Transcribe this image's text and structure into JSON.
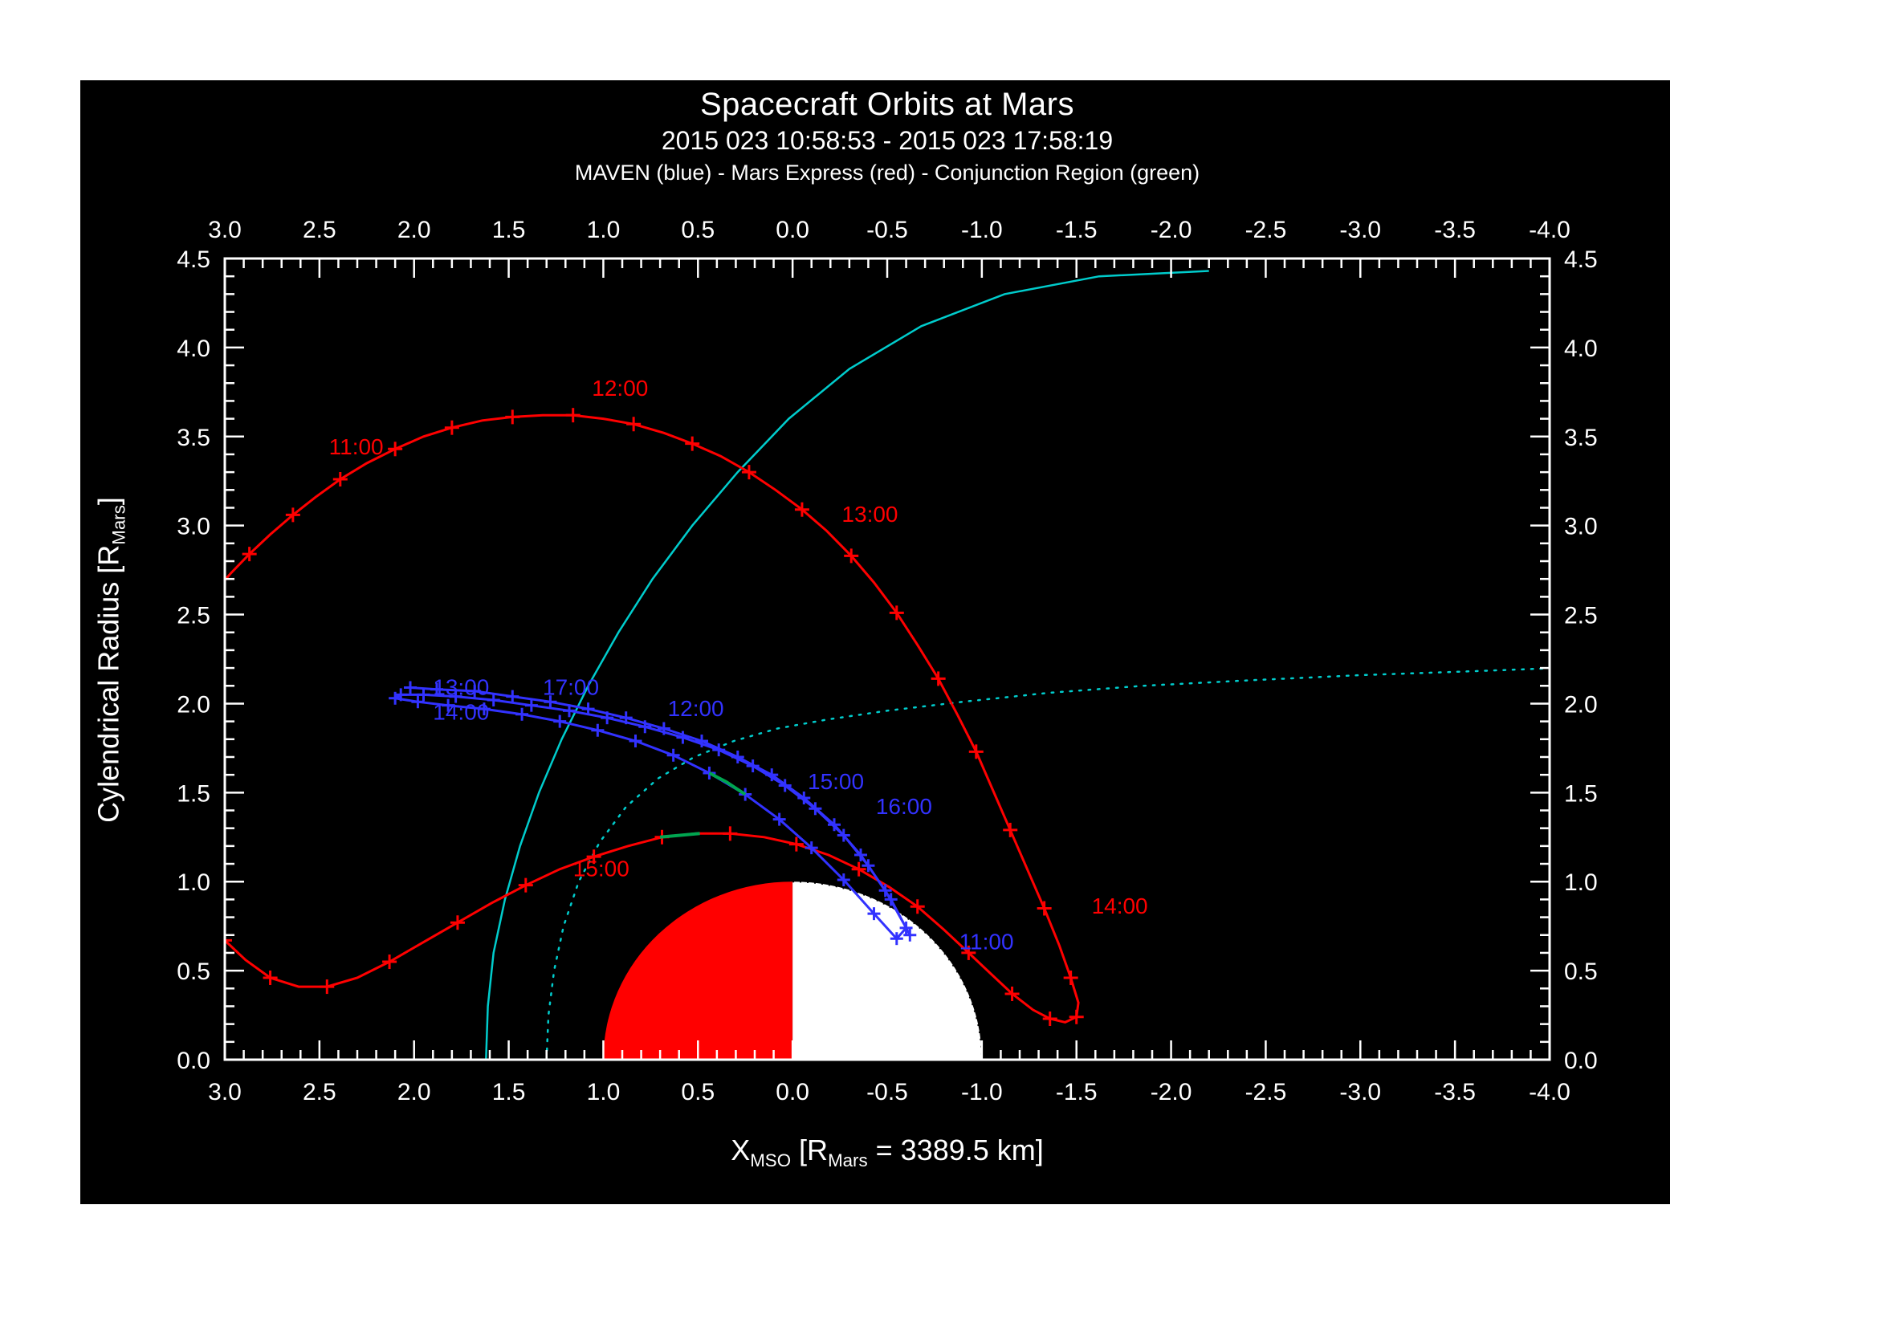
{
  "header": {
    "title": "Spacecraft Orbits at Mars",
    "subtitle": "2015 023 10:58:53 - 2015 023 17:58:19",
    "legend_line": "MAVEN (blue) - Mars Express (red) - Conjunction Region (green)"
  },
  "axes": {
    "x_title": {
      "p1": "X",
      "s1": "MSO",
      "p2": " [R",
      "s2": "Mars",
      "p3": " = 3389.5 km]"
    },
    "y_title": {
      "p1": "Cylendrical Radius [R",
      "s1": "Mars",
      "p2": "]"
    }
  },
  "chart_data": {
    "type": "line",
    "title": "Spacecraft Orbits at Mars",
    "xlabel": "X_MSO [R_Mars = 3389.5 km]",
    "ylabel": "Cylendrical Radius [R_Mars]",
    "xlim": [
      3.0,
      -4.0
    ],
    "ylim": [
      0.0,
      4.5
    ],
    "minor_step": 0.1,
    "grid": false,
    "x_tick_values": [
      3.0,
      2.5,
      2.0,
      1.5,
      1.0,
      0.5,
      0.0,
      -0.5,
      -1.0,
      -1.5,
      -2.0,
      -2.5,
      -3.0,
      -3.5,
      -4.0
    ],
    "x_tick_labels": [
      "3.0",
      "2.5",
      "2.0",
      "1.5",
      "1.0",
      "0.5",
      "0.0",
      "-0.5",
      "-1.0",
      "-1.5",
      "-2.0",
      "-2.5",
      "-3.0",
      "-3.5",
      "-4.0"
    ],
    "y_tick_values": [
      0.0,
      0.5,
      1.0,
      1.5,
      2.0,
      2.5,
      3.0,
      3.5,
      4.0,
      4.5
    ],
    "y_tick_labels": [
      "0.0",
      "0.5",
      "1.0",
      "1.5",
      "2.0",
      "2.5",
      "3.0",
      "3.5",
      "4.0",
      "4.5"
    ],
    "colors": {
      "background": "#000000",
      "frame": "#ffffff",
      "mars_express": "#ff0000",
      "maven": "#3232ff",
      "boundary": "#00cccc",
      "conjunction": "#00a550",
      "mars_dayside": "#ff0000",
      "mars_nightside": "#ffffff"
    },
    "mars": {
      "radius": 1.0,
      "dayside_color": "#ff0000",
      "nightside_color": "#ffffff"
    },
    "series": [
      {
        "id": "boundary-solid-curve",
        "name": "bow-shock-boundary",
        "color": "#00cccc",
        "line": "solid",
        "marker": "none",
        "width": 2.5,
        "points": [
          [
            1.62,
            0.0
          ],
          [
            1.61,
            0.3
          ],
          [
            1.58,
            0.6
          ],
          [
            1.52,
            0.9
          ],
          [
            1.44,
            1.2
          ],
          [
            1.34,
            1.5
          ],
          [
            1.22,
            1.8
          ],
          [
            1.08,
            2.1
          ],
          [
            0.92,
            2.4
          ],
          [
            0.74,
            2.7
          ],
          [
            0.53,
            3.0
          ],
          [
            0.29,
            3.3
          ],
          [
            0.02,
            3.6
          ],
          [
            -0.3,
            3.88
          ],
          [
            -0.68,
            4.12
          ],
          [
            -1.12,
            4.3
          ],
          [
            -1.62,
            4.4
          ],
          [
            -2.2,
            4.43
          ]
        ],
        "time_labels": []
      },
      {
        "id": "boundary-dotted-curve",
        "name": "magnetic-pileup-boundary",
        "color": "#00cccc",
        "line": "dotted",
        "marker": "none",
        "width": 2.5,
        "points": [
          [
            1.3,
            0.0
          ],
          [
            1.29,
            0.25
          ],
          [
            1.26,
            0.5
          ],
          [
            1.21,
            0.75
          ],
          [
            1.13,
            1.0
          ],
          [
            1.02,
            1.22
          ],
          [
            0.88,
            1.42
          ],
          [
            0.71,
            1.58
          ],
          [
            0.52,
            1.7
          ],
          [
            0.31,
            1.79
          ],
          [
            0.08,
            1.86
          ],
          [
            -0.18,
            1.91
          ],
          [
            -0.5,
            1.96
          ],
          [
            -0.9,
            2.01
          ],
          [
            -1.35,
            2.06
          ],
          [
            -1.85,
            2.1
          ],
          [
            -2.4,
            2.13
          ],
          [
            -3.0,
            2.16
          ],
          [
            -3.55,
            2.18
          ],
          [
            -4.05,
            2.2
          ]
        ],
        "time_labels": []
      },
      {
        "id": "mars-express-orbit",
        "name": "Mars Express",
        "color": "#ff0000",
        "line": "solid",
        "marker": "plus",
        "marker_step": 2,
        "marker_size": 9,
        "width": 3,
        "points": [
          [
            3.06,
            2.62
          ],
          [
            2.97,
            2.73
          ],
          [
            2.87,
            2.84
          ],
          [
            2.76,
            2.95
          ],
          [
            2.64,
            3.06
          ],
          [
            2.52,
            3.16
          ],
          [
            2.39,
            3.26
          ],
          [
            2.25,
            3.35
          ],
          [
            2.1,
            3.43
          ],
          [
            1.95,
            3.5
          ],
          [
            1.8,
            3.55
          ],
          [
            1.64,
            3.59
          ],
          [
            1.48,
            3.61
          ],
          [
            1.32,
            3.62
          ],
          [
            1.16,
            3.62
          ],
          [
            1.0,
            3.6
          ],
          [
            0.84,
            3.57
          ],
          [
            0.68,
            3.52
          ],
          [
            0.53,
            3.46
          ],
          [
            0.38,
            3.39
          ],
          [
            0.23,
            3.3
          ],
          [
            0.09,
            3.2
          ],
          [
            -0.05,
            3.09
          ],
          [
            -0.18,
            2.97
          ],
          [
            -0.31,
            2.83
          ],
          [
            -0.43,
            2.68
          ],
          [
            -0.55,
            2.51
          ],
          [
            -0.66,
            2.33
          ],
          [
            -0.77,
            2.14
          ],
          [
            -0.87,
            1.94
          ],
          [
            -0.97,
            1.73
          ],
          [
            -1.06,
            1.51
          ],
          [
            -1.15,
            1.29
          ],
          [
            -1.24,
            1.07
          ],
          [
            -1.33,
            0.85
          ],
          [
            -1.41,
            0.64
          ],
          [
            -1.47,
            0.46
          ],
          [
            -1.51,
            0.32
          ],
          [
            -1.5,
            0.24
          ],
          [
            -1.44,
            0.21
          ],
          [
            -1.36,
            0.23
          ],
          [
            -1.27,
            0.28
          ],
          [
            -1.16,
            0.37
          ],
          [
            -1.05,
            0.48
          ],
          [
            -0.93,
            0.6
          ],
          [
            -0.8,
            0.73
          ],
          [
            -0.66,
            0.86
          ],
          [
            -0.51,
            0.97
          ],
          [
            -0.35,
            1.07
          ],
          [
            -0.19,
            1.15
          ],
          [
            -0.02,
            1.21
          ],
          [
            0.15,
            1.25
          ],
          [
            0.33,
            1.27
          ],
          [
            0.51,
            1.27
          ],
          [
            0.69,
            1.25
          ],
          [
            0.87,
            1.2
          ],
          [
            1.05,
            1.14
          ],
          [
            1.23,
            1.07
          ],
          [
            1.41,
            0.98
          ],
          [
            1.59,
            0.88
          ],
          [
            1.77,
            0.77
          ],
          [
            1.95,
            0.66
          ],
          [
            2.13,
            0.55
          ],
          [
            2.3,
            0.46
          ],
          [
            2.46,
            0.41
          ],
          [
            2.61,
            0.41
          ],
          [
            2.76,
            0.46
          ],
          [
            2.89,
            0.56
          ],
          [
            3.0,
            0.67
          ],
          [
            3.06,
            0.76
          ]
        ],
        "time_labels": [
          {
            "text": "11:00",
            "x": 2.45,
            "y": 3.4
          },
          {
            "text": "12:00",
            "x": 1.06,
            "y": 3.73
          },
          {
            "text": "13:00",
            "x": -0.26,
            "y": 3.02
          },
          {
            "text": "14:00",
            "x": -1.58,
            "y": 0.82
          },
          {
            "text": "15:00",
            "x": 1.16,
            "y": 1.03
          }
        ]
      },
      {
        "id": "maven-orbit",
        "name": "MAVEN",
        "color": "#3232ff",
        "line": "solid",
        "marker": "plus",
        "marker_step": 1,
        "marker_size": 8,
        "width": 3,
        "points": [
          [
            -0.62,
            0.7
          ],
          [
            -0.52,
            0.9
          ],
          [
            -0.4,
            1.09
          ],
          [
            -0.27,
            1.26
          ],
          [
            -0.12,
            1.41
          ],
          [
            0.04,
            1.54
          ],
          [
            0.21,
            1.65
          ],
          [
            0.39,
            1.74
          ],
          [
            0.58,
            1.81
          ],
          [
            0.78,
            1.87
          ],
          [
            0.98,
            1.92
          ],
          [
            1.18,
            1.96
          ],
          [
            1.38,
            1.99
          ],
          [
            1.58,
            2.02
          ],
          [
            1.78,
            2.04
          ],
          [
            1.95,
            2.05
          ],
          [
            2.07,
            2.05
          ],
          [
            2.1,
            2.03
          ],
          [
            1.98,
            2.01
          ],
          [
            1.82,
            1.99
          ],
          [
            1.63,
            1.97
          ],
          [
            1.43,
            1.94
          ],
          [
            1.23,
            1.9
          ],
          [
            1.03,
            1.85
          ],
          [
            0.83,
            1.79
          ],
          [
            0.63,
            1.71
          ],
          [
            0.44,
            1.61
          ],
          [
            0.25,
            1.49
          ],
          [
            0.07,
            1.35
          ],
          [
            -0.1,
            1.19
          ],
          [
            -0.27,
            1.01
          ],
          [
            -0.43,
            0.82
          ],
          [
            -0.55,
            0.68
          ],
          [
            -0.6,
            0.74
          ],
          [
            -0.49,
            0.95
          ],
          [
            -0.36,
            1.15
          ],
          [
            -0.22,
            1.32
          ],
          [
            -0.06,
            1.47
          ],
          [
            0.11,
            1.6
          ],
          [
            0.29,
            1.7
          ],
          [
            0.48,
            1.79
          ],
          [
            0.68,
            1.86
          ],
          [
            0.88,
            1.92
          ],
          [
            1.08,
            1.97
          ],
          [
            1.28,
            2.01
          ],
          [
            1.48,
            2.04
          ],
          [
            1.68,
            2.07
          ],
          [
            1.88,
            2.08
          ],
          [
            2.02,
            2.09
          ]
        ],
        "time_labels": [
          {
            "text": "11:00",
            "x": -0.88,
            "y": 0.62
          },
          {
            "text": "12:00",
            "x": 0.66,
            "y": 1.93
          },
          {
            "text": "13:00",
            "x": 1.9,
            "y": 2.05
          },
          {
            "text": "14:00",
            "x": 1.9,
            "y": 1.91
          },
          {
            "text": "15:00",
            "x": -0.08,
            "y": 1.52
          },
          {
            "text": "16:00",
            "x": -0.44,
            "y": 1.38
          },
          {
            "text": "17:00",
            "x": 1.32,
            "y": 2.05
          }
        ]
      },
      {
        "id": "conjunction-region",
        "name": "Conjunction Region",
        "color": "#00a550",
        "line": "solid",
        "marker": "none",
        "width": 4,
        "segments": [
          [
            [
              0.25,
              1.49
            ],
            [
              0.35,
              1.56
            ],
            [
              0.44,
              1.61
            ]
          ],
          [
            [
              0.49,
              1.27
            ],
            [
              0.6,
              1.26
            ],
            [
              0.7,
              1.25
            ]
          ]
        ],
        "time_labels": []
      }
    ]
  }
}
